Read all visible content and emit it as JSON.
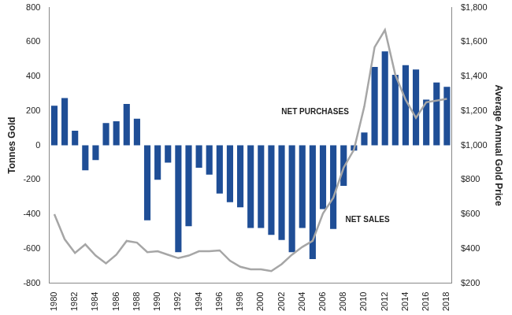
{
  "chart_data": {
    "type": "bar",
    "categories": [
      "1980",
      null,
      "1982",
      null,
      "1984",
      null,
      "1986",
      null,
      "1988",
      null,
      "1990",
      null,
      "1992",
      null,
      "1994",
      null,
      "1996",
      null,
      "1998",
      null,
      "2000",
      null,
      "2002",
      null,
      "2004",
      null,
      "2006",
      null,
      "2008",
      null,
      "2010",
      null,
      "2012",
      null,
      "2014",
      null,
      "2016",
      null,
      "2018"
    ],
    "series": [
      {
        "name": "Tonnes Gold",
        "type": "bar",
        "color": "#1f4e96",
        "values": [
          230,
          275,
          85,
          -145,
          -85,
          130,
          140,
          240,
          155,
          -435,
          -200,
          -100,
          -620,
          -470,
          -130,
          -170,
          -280,
          -330,
          -360,
          -480,
          -480,
          -520,
          -550,
          -620,
          -480,
          -660,
          -370,
          -485,
          -235,
          -30,
          75,
          455,
          545,
          410,
          465,
          440,
          265,
          365,
          340
        ]
      },
      {
        "name": "Average Annual Gold Price",
        "type": "line",
        "color": "#a6a6a6",
        "axis": "y2",
        "values": [
          600,
          455,
          375,
          425,
          360,
          315,
          365,
          445,
          435,
          380,
          385,
          365,
          345,
          360,
          385,
          385,
          390,
          330,
          295,
          280,
          280,
          270,
          310,
          365,
          410,
          445,
          605,
          695,
          870,
          975,
          1225,
          1570,
          1670,
          1410,
          1265,
          1160,
          1250,
          1260,
          1270
        ]
      }
    ],
    "y_label": "Tonnes Gold",
    "y2_label": "Average Annual Gold Price",
    "ylim": [
      -800,
      800
    ],
    "yticks": [
      -800,
      -600,
      -400,
      -200,
      0,
      200,
      400,
      600,
      800
    ],
    "y2lim": [
      200,
      1800
    ],
    "y2ticks": [
      {
        "value": 200,
        "label": "$200"
      },
      {
        "value": 400,
        "label": "$400"
      },
      {
        "value": 600,
        "label": "$600"
      },
      {
        "value": 800,
        "label": "$800"
      },
      {
        "value": 1000,
        "label": "$1,000"
      },
      {
        "value": 1200,
        "label": "$1,200"
      },
      {
        "value": 1400,
        "label": "$1,400"
      },
      {
        "value": 1600,
        "label": "$1,600"
      },
      {
        "value": 1800,
        "label": "$1,800"
      }
    ],
    "annotations": [
      "NET PURCHASES",
      "NET SALES"
    ],
    "grid": false
  }
}
